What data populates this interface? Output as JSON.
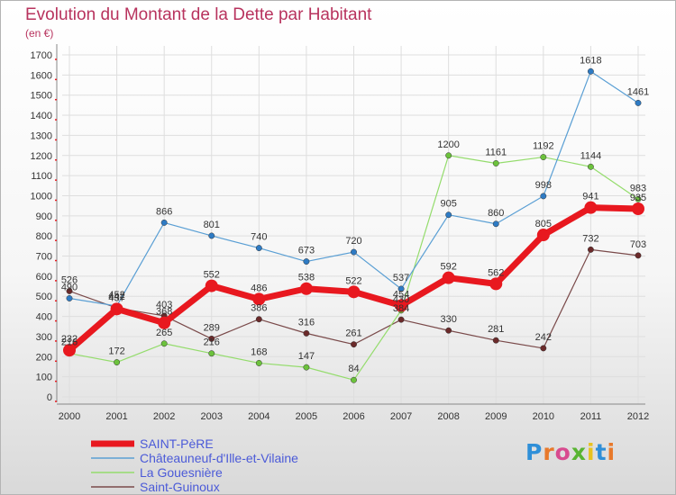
{
  "header": {
    "title": "Evolution du Montant de la Dette par Habitant",
    "subtitle": "(en €)"
  },
  "logo": {
    "text": "Proxiti",
    "colors": [
      "#2f8fd8",
      "#e8792b",
      "#d84b8f",
      "#58b432",
      "#e8c21f",
      "#2f8fd8",
      "#e8792b"
    ]
  },
  "colors": {
    "title": "#b8335e",
    "legend_text": "#4b5ad8",
    "axis_text": "#333333",
    "grid": "#dedede",
    "tick_red": "#e8181f"
  },
  "chart_data": {
    "type": "line",
    "title": "Evolution du Montant de la Dette par Habitant",
    "subtitle": "(en €)",
    "x": [
      "2000",
      "2001",
      "2002",
      "2003",
      "2004",
      "2005",
      "2006",
      "2007",
      "2008",
      "2009",
      "2010",
      "2011",
      "2012"
    ],
    "ylim": [
      0,
      1700
    ],
    "yticks": [
      0,
      100,
      200,
      300,
      400,
      500,
      600,
      700,
      800,
      900,
      1000,
      1100,
      1200,
      1300,
      1400,
      1500,
      1600,
      1700
    ],
    "grid": true,
    "legend_position": "bottom-left",
    "series": [
      {
        "name": "SAINT-PèRE",
        "color": "#e8181f",
        "marker_color": "#e8181f",
        "width": 7,
        "marker_size": 7,
        "values": [
          232,
          437,
          368,
          552,
          486,
          538,
          522,
          454,
          592,
          562,
          805,
          941,
          935
        ],
        "show_labels": true
      },
      {
        "name": "Châteauneuf-d'Ille-et-Vilaine",
        "color": "#5a9fd4",
        "marker_color": "#2e7bc4",
        "width": 1.2,
        "marker_size": 3.2,
        "values": [
          490,
          452,
          866,
          801,
          740,
          673,
          720,
          537,
          905,
          860,
          998,
          1618,
          1461
        ],
        "show_labels": true
      },
      {
        "name": "La Gouesnière",
        "color": "#94dc6c",
        "marker_color": "#6cc23c",
        "width": 1.2,
        "marker_size": 3.2,
        "values": [
          216,
          172,
          265,
          216,
          168,
          147,
          84,
          430,
          1200,
          1161,
          1192,
          1144,
          983
        ],
        "show_labels": true
      },
      {
        "name": "Saint-Guinoux",
        "color": "#7a4a4a",
        "marker_color": "#6b2a2a",
        "width": 1.2,
        "marker_size": 3.2,
        "values": [
          526,
          442,
          403,
          289,
          386,
          316,
          261,
          384,
          330,
          281,
          242,
          732,
          703
        ],
        "show_labels": true
      }
    ]
  }
}
